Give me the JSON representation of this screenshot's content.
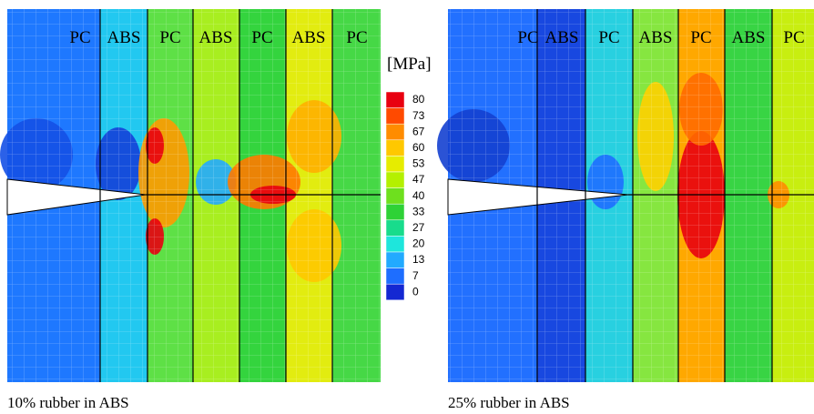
{
  "left_panel": {
    "layers": [
      "PC",
      "ABS",
      "PC",
      "ABS",
      "PC",
      "ABS",
      "PC"
    ],
    "caption": "10% rubber in ABS"
  },
  "right_panel": {
    "layers": [
      "PC",
      "ABS",
      "PC",
      "ABS",
      "PC",
      "ABS",
      "PC"
    ],
    "caption": "25% rubber in ABS"
  },
  "colorbar": {
    "unit": "[MPa]",
    "levels": [
      80,
      73,
      67,
      60,
      53,
      47,
      40,
      33,
      27,
      20,
      13,
      7,
      0
    ],
    "colors": [
      "#e80010",
      "#ff4a00",
      "#ff8c00",
      "#ffc800",
      "#e6ec00",
      "#b4f000",
      "#6ee01e",
      "#2ed236",
      "#18dc8c",
      "#1ee6dc",
      "#22aaff",
      "#1e6eff",
      "#1428d2"
    ]
  }
}
